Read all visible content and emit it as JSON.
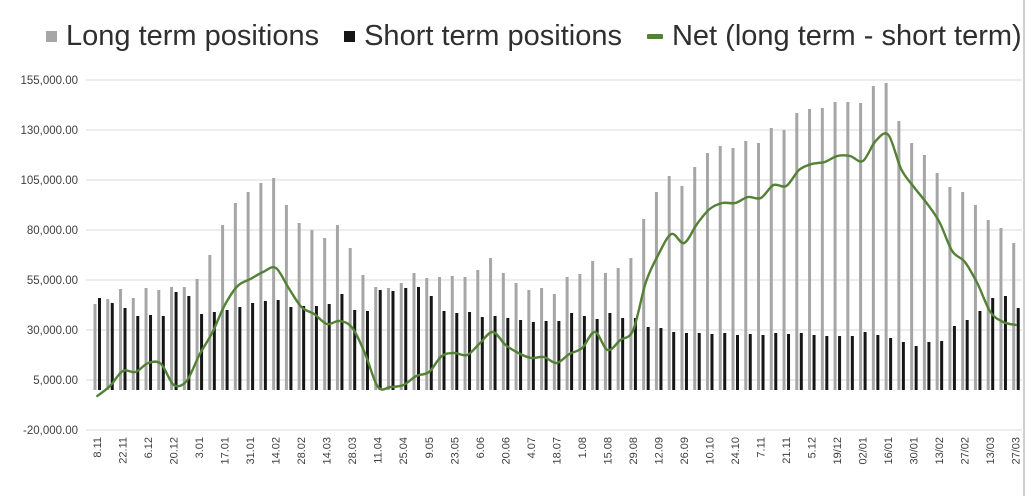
{
  "legend": {
    "items": [
      {
        "label": "Long term positions",
        "marker": "square",
        "color": "#a6a6a6"
      },
      {
        "label": "Short term positions",
        "marker": "square",
        "color": "#161616"
      },
      {
        "label": "Net (long term - short term)",
        "marker": "dash",
        "color": "#538135"
      }
    ]
  },
  "chart_data": {
    "type": "bar",
    "title": "",
    "xlabel": "",
    "ylabel": "",
    "ylim": [
      -20000,
      155000
    ],
    "y_tick_step": 25000,
    "y_tick_labels": [
      "155,000.00",
      "130,000.00",
      "105,000.00",
      "80,000.00",
      "55,000.00",
      "30,000.00",
      "5,000.00",
      "-20,000.00"
    ],
    "y_tick_values": [
      155000,
      130000,
      105000,
      80000,
      55000,
      30000,
      5000,
      -20000
    ],
    "grid": "horizontal",
    "gridline_color": "#d9d9d9",
    "axis_text_color": "#3f3f3f",
    "legend_position": "top",
    "categories": [
      "8.11",
      "22.11",
      "6.12",
      "20.12",
      "3.01",
      "17.01",
      "31.01",
      "14.02",
      "28.02",
      "14.03",
      "28.03",
      "11.04",
      "25.04",
      "9.05",
      "23.05",
      "6.06",
      "20.06",
      "4.07",
      "18.07",
      "1.08",
      "15.08",
      "29.08",
      "12.09",
      "26.09",
      "10.10",
      "24.10",
      "7.11",
      "21.11",
      "5.12",
      "19/12",
      "02/01",
      "16/01",
      "30/01",
      "13/02",
      "27/02",
      "13/03",
      "27/03"
    ],
    "points_per_category": 2,
    "series": [
      {
        "name": "Long term positions",
        "type": "bar",
        "color": "#a6a6a6",
        "values": [
          43000,
          45500,
          50500,
          46000,
          51000,
          50000,
          51500,
          51500,
          55500,
          67500,
          82500,
          93500,
          99000,
          103500,
          106000,
          92500,
          83500,
          80000,
          76000,
          82500,
          71000,
          57500,
          51500,
          51000,
          53500,
          58500,
          56000,
          56500,
          57000,
          56500,
          60000,
          66000,
          58500,
          53500,
          50000,
          51000,
          48000,
          56500,
          58000,
          64500,
          58500,
          61000,
          66000,
          85500,
          99000,
          107000,
          102000,
          111500,
          118500,
          122000,
          121000,
          124500,
          123500,
          131000,
          130000,
          138500,
          140500,
          141000,
          144000,
          144000,
          143500,
          152000,
          153500,
          134500,
          123500,
          117500,
          108500,
          101500,
          99000,
          92500,
          85000,
          81000,
          73500
        ]
      },
      {
        "name": "Short term positions",
        "type": "bar",
        "color": "#161616",
        "values": [
          46000,
          43500,
          41000,
          37000,
          37500,
          37000,
          49000,
          47000,
          38000,
          39000,
          40000,
          41500,
          43500,
          44500,
          45000,
          41500,
          42000,
          42000,
          43000,
          48000,
          40000,
          39500,
          50000,
          49500,
          51000,
          51500,
          47000,
          39500,
          38500,
          39000,
          36500,
          37000,
          36000,
          35000,
          34000,
          34500,
          34500,
          38500,
          37000,
          35500,
          38500,
          36000,
          36000,
          31500,
          31000,
          29000,
          28500,
          28500,
          28000,
          28500,
          27500,
          28000,
          27500,
          28500,
          28000,
          28500,
          27500,
          27000,
          27000,
          27000,
          29000,
          27500,
          26000,
          24000,
          22000,
          24000,
          24500,
          32000,
          35000,
          39500,
          46000,
          47000,
          41000
        ]
      },
      {
        "name": "Net (long term - short term)",
        "type": "line",
        "color": "#538135",
        "values": [
          -3000,
          2000,
          9500,
          9000,
          13500,
          13000,
          2500,
          4500,
          17500,
          28500,
          42500,
          52000,
          55500,
          59000,
          61000,
          51000,
          41500,
          38000,
          33000,
          34500,
          31000,
          18000,
          1500,
          1500,
          2500,
          7000,
          9000,
          17000,
          18500,
          17500,
          23500,
          29000,
          22500,
          18500,
          16000,
          16500,
          13500,
          18000,
          21000,
          29000,
          20000,
          25000,
          30000,
          54000,
          68000,
          78000,
          73500,
          83000,
          90500,
          93500,
          93500,
          96500,
          96000,
          102500,
          102000,
          110000,
          113000,
          114000,
          117000,
          117000,
          114500,
          124500,
          127500,
          110500,
          101500,
          93500,
          84000,
          69500,
          64000,
          53000,
          39000,
          34000,
          32500
        ]
      }
    ]
  }
}
